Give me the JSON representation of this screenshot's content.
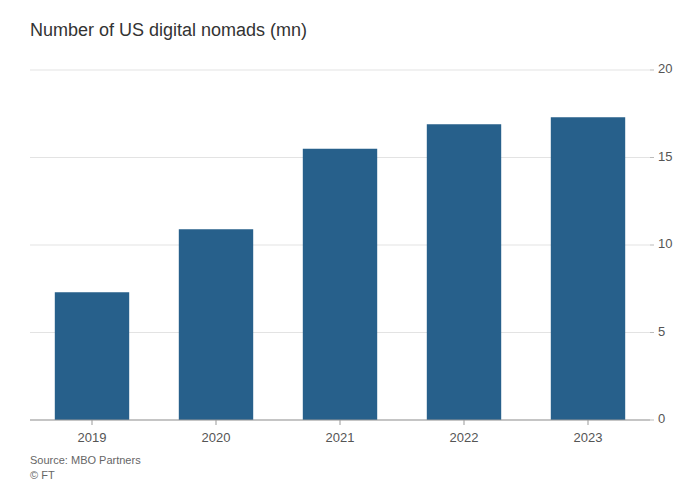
{
  "chart_data": {
    "type": "bar",
    "title": "Number of US digital nomads (mn)",
    "categories": [
      "2019",
      "2020",
      "2021",
      "2022",
      "2023"
    ],
    "values": [
      7.3,
      10.9,
      15.5,
      16.9,
      17.3
    ],
    "color": "#27608b",
    "ylim": [
      0,
      20
    ],
    "yticks": [
      0,
      5,
      10,
      15,
      20
    ],
    "grid": true,
    "source": "Source: MBO Partners\n© FT"
  }
}
